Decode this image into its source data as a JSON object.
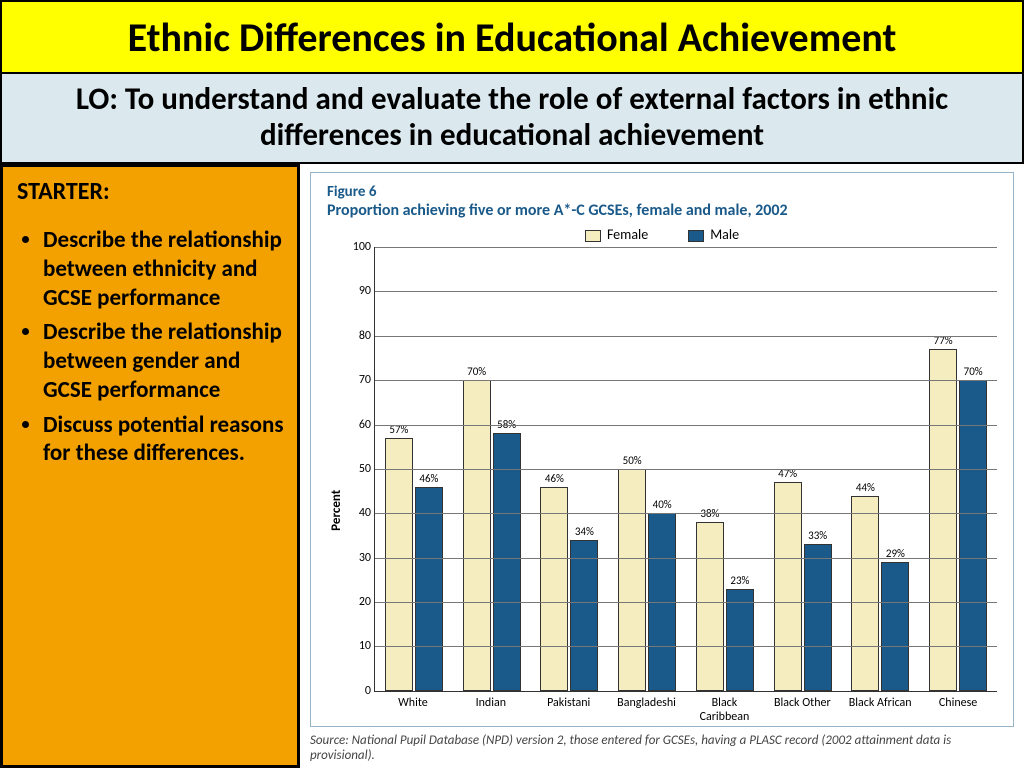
{
  "title": "Ethnic Differences in Educational Achievement",
  "lo": "LO: To understand and evaluate the role of external factors in ethnic differences in educational achievement",
  "starter": {
    "heading": "STARTER:",
    "bullets": [
      "Describe the relationship between ethnicity and GCSE performance",
      "Describe the relationship between gender and GCSE performance",
      "Discuss potential reasons for these differences."
    ]
  },
  "chart": {
    "type": "bar",
    "figure_number": "Figure 6",
    "figure_title": "Proportion achieving five or more A*-C GCSEs, female and male, 2002",
    "ylabel": "Percent",
    "ylim": [
      0,
      100
    ],
    "ytick_step": 10,
    "grid_color": "#777777",
    "background_color": "#ffffff",
    "legend": [
      {
        "label": "Female",
        "color": "#f5ecc0"
      },
      {
        "label": "Male",
        "color": "#1a5a8a"
      }
    ],
    "categories": [
      "White",
      "Indian",
      "Pakistani",
      "Bangladeshi",
      "Black Caribbean",
      "Black Other",
      "Black African",
      "Chinese"
    ],
    "female_values": [
      57,
      70,
      46,
      50,
      38,
      47,
      44,
      77
    ],
    "male_values": [
      46,
      58,
      34,
      40,
      23,
      33,
      29,
      70
    ],
    "colors": {
      "female": "#f5ecc0",
      "male": "#1a5a8a"
    }
  },
  "source": "Source: National Pupil Database (NPD) version 2, those entered for GCSEs, having a PLASC record (2002 attainment data is provisional)."
}
